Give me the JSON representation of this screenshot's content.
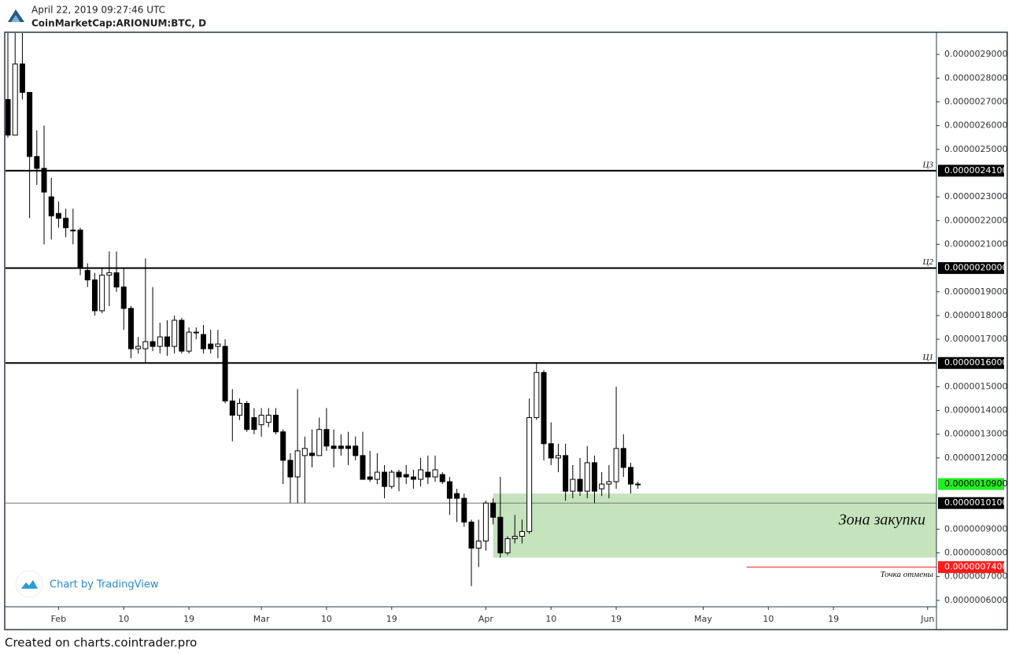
{
  "header": {
    "timestamp": "April 22, 2019 09:27:46 UTC",
    "symbol": "CoinMarketCap:ARIONUM:BTC, D"
  },
  "chart_data": {
    "type": "candlestick",
    "x": [
      "2019-01-25",
      "2019-01-26",
      "2019-01-27",
      "2019-01-28",
      "2019-01-29",
      "2019-01-30",
      "2019-01-31",
      "2019-02-01",
      "2019-02-02",
      "2019-02-03",
      "2019-02-04",
      "2019-02-05",
      "2019-02-06",
      "2019-02-07",
      "2019-02-08",
      "2019-02-09",
      "2019-02-10",
      "2019-02-11",
      "2019-02-12",
      "2019-02-13",
      "2019-02-14",
      "2019-02-15",
      "2019-02-16",
      "2019-02-17",
      "2019-02-18",
      "2019-02-19",
      "2019-02-20",
      "2019-02-21",
      "2019-02-22",
      "2019-02-23",
      "2019-02-24",
      "2019-02-25",
      "2019-02-26",
      "2019-02-27",
      "2019-02-28",
      "2019-03-01",
      "2019-03-02",
      "2019-03-03",
      "2019-03-04",
      "2019-03-05",
      "2019-03-06",
      "2019-03-07",
      "2019-03-08",
      "2019-03-09",
      "2019-03-10",
      "2019-03-11",
      "2019-03-12",
      "2019-03-13",
      "2019-03-14",
      "2019-03-15",
      "2019-03-16",
      "2019-03-17",
      "2019-03-18",
      "2019-03-19",
      "2019-03-20",
      "2019-03-21",
      "2019-03-22",
      "2019-03-23",
      "2019-03-24",
      "2019-03-25",
      "2019-03-26",
      "2019-03-27",
      "2019-03-28",
      "2019-03-29",
      "2019-03-30",
      "2019-03-31",
      "2019-04-01",
      "2019-04-02",
      "2019-04-03",
      "2019-04-04",
      "2019-04-05",
      "2019-04-06",
      "2019-04-07",
      "2019-04-08",
      "2019-04-09",
      "2019-04-10",
      "2019-04-11",
      "2019-04-12",
      "2019-04-13",
      "2019-04-14",
      "2019-04-15",
      "2019-04-16",
      "2019-04-17",
      "2019-04-18",
      "2019-04-19",
      "2019-04-20",
      "2019-04-21",
      "2019-04-22"
    ],
    "open": [
      2.71e-06,
      2.56e-06,
      2.86e-06,
      2.74e-06,
      2.47e-06,
      2.42e-06,
      2.3e-06,
      2.23e-06,
      2.21e-06,
      2.16e-06,
      2.16e-06,
      1.99e-06,
      1.95e-06,
      1.82e-06,
      1.97e-06,
      1.98e-06,
      1.92e-06,
      1.83e-06,
      1.66e-06,
      1.66e-06,
      1.69e-06,
      1.67e-06,
      1.71e-06,
      1.67e-06,
      1.78e-06,
      1.65e-06,
      1.73e-06,
      1.72e-06,
      1.68e-06,
      1.67e-06,
      1.67e-06,
      1.44e-06,
      1.38e-06,
      1.43e-06,
      1.37e-06,
      1.34e-06,
      1.35e-06,
      1.38e-06,
      1.31e-06,
      1.19e-06,
      1.12e-06,
      1.21e-06,
      1.22e-06,
      1.21e-06,
      1.32e-06,
      1.25e-06,
      1.25e-06,
      1.25e-06,
      1.25e-06,
      1.21e-06,
      1.12e-06,
      1.11e-06,
      1.14e-06,
      1.08e-06,
      1.14e-06,
      1.13e-06,
      1.12e-06,
      1.11e-06,
      1.14e-06,
      1.12e-06,
      1.13e-06,
      1.1e-06,
      1.05e-06,
      1.03e-06,
      9.3e-07,
      8.2e-07,
      8.5e-07,
      1.01e-06,
      9.5e-07,
      8e-07,
      8.6e-07,
      8.7e-07,
      8.9e-07,
      1.37e-06,
      1.56e-06,
      1.26e-06,
      1.2e-06,
      1.21e-06,
      1.06e-06,
      1.11e-06,
      1.06e-06,
      1.18e-06,
      1.07e-06,
      1.09e-06,
      1.1e-06,
      1.24e-06,
      1.16e-06,
      1.09e-06
    ],
    "high": [
      2.99e-06,
      2.99e-06,
      2.99e-06,
      2.74e-06,
      2.58e-06,
      2.6e-06,
      2.38e-06,
      2.28e-06,
      2.25e-06,
      2.25e-06,
      2.17e-06,
      2.02e-06,
      1.98e-06,
      2e-06,
      2.07e-06,
      2.07e-06,
      2e-06,
      1.84e-06,
      1.71e-06,
      2.04e-06,
      1.92e-06,
      1.77e-06,
      1.78e-06,
      1.8e-06,
      1.79e-06,
      1.75e-06,
      1.75e-06,
      1.76e-06,
      1.74e-06,
      1.74e-06,
      1.7e-06,
      1.49e-06,
      1.45e-06,
      1.44e-06,
      1.41e-06,
      1.41e-06,
      1.41e-06,
      1.41e-06,
      1.32e-06,
      1.22e-06,
      1.49e-06,
      1.29e-06,
      1.32e-06,
      1.37e-06,
      1.41e-06,
      1.32e-06,
      1.3e-06,
      1.31e-06,
      1.29e-06,
      1.31e-06,
      1.23e-06,
      1.22e-06,
      1.17e-06,
      1.15e-06,
      1.15e-06,
      1.17e-06,
      1.15e-06,
      1.2e-06,
      1.21e-06,
      1.21e-06,
      1.14e-06,
      1.12e-06,
      1.07e-06,
      1.05e-06,
      9.4e-07,
      9.4e-07,
      1.02e-06,
      1.03e-06,
      1.12e-06,
      8.7e-07,
      9.6e-07,
      9.4e-07,
      1.45e-06,
      1.6e-06,
      1.57e-06,
      1.35e-06,
      1.26e-06,
      1.26e-06,
      1.17e-06,
      1.2e-06,
      1.25e-06,
      1.21e-06,
      1.14e-06,
      1.17e-06,
      1.5e-06,
      1.3e-06,
      1.18e-06,
      1.1e-06
    ],
    "low": [
      2.55e-06,
      2.56e-06,
      2.71e-06,
      2.21e-06,
      2.35e-06,
      2.1e-06,
      2.12e-06,
      2.17e-06,
      2.13e-06,
      2.1e-06,
      1.97e-06,
      1.92e-06,
      1.8e-06,
      1.81e-06,
      1.84e-06,
      1.9e-06,
      1.74e-06,
      1.62e-06,
      1.64e-06,
      1.6e-06,
      1.65e-06,
      1.64e-06,
      1.63e-06,
      1.64e-06,
      1.64e-06,
      1.64e-06,
      1.7e-06,
      1.64e-06,
      1.64e-06,
      1.62e-06,
      1.43e-06,
      1.27e-06,
      1.36e-06,
      1.31e-06,
      1.3e-06,
      1.29e-06,
      1.33e-06,
      1.3e-06,
      1.09e-06,
      1.01e-06,
      1.01e-06,
      1.01e-06,
      1.16e-06,
      1.21e-06,
      1.23e-06,
      1.16e-06,
      1.21e-06,
      1.17e-06,
      1.19e-06,
      1.11e-06,
      1.1e-06,
      1.09e-06,
      1.03e-06,
      1.07e-06,
      1.06e-06,
      1.09e-06,
      1.07e-06,
      1.08e-06,
      1.09e-06,
      1.1e-06,
      1.09e-06,
      9.6e-07,
      9.3e-07,
      9.1e-07,
      6.6e-07,
      7.4e-07,
      8.1e-07,
      9.2e-07,
      7.8e-07,
      7.9e-07,
      8.4e-07,
      8.4e-07,
      8.8e-07,
      1.36e-06,
      1.19e-06,
      1.17e-06,
      1.14e-06,
      1.02e-06,
      1.03e-06,
      1.04e-06,
      1.03e-06,
      1.01e-06,
      1.04e-06,
      1.03e-06,
      1.07e-06,
      1.12e-06,
      1.05e-06,
      1.07e-06
    ],
    "close": [
      2.56e-06,
      2.86e-06,
      2.74e-06,
      2.47e-06,
      2.42e-06,
      2.32e-06,
      2.22e-06,
      2.21e-06,
      2.17e-06,
      2.16e-06,
      2e-06,
      1.95e-06,
      1.82e-06,
      1.97e-06,
      1.98e-06,
      1.92e-06,
      1.83e-06,
      1.66e-06,
      1.67e-06,
      1.69e-06,
      1.67e-06,
      1.71e-06,
      1.67e-06,
      1.78e-06,
      1.65e-06,
      1.73e-06,
      1.73e-06,
      1.66e-06,
      1.66e-06,
      1.68e-06,
      1.44e-06,
      1.38e-06,
      1.43e-06,
      1.32e-06,
      1.32e-06,
      1.38e-06,
      1.38e-06,
      1.31e-06,
      1.19e-06,
      1.12e-06,
      1.23e-06,
      1.24e-06,
      1.21e-06,
      1.32e-06,
      1.25e-06,
      1.24e-06,
      1.24e-06,
      1.24e-06,
      1.21e-06,
      1.11e-06,
      1.11e-06,
      1.14e-06,
      1.08e-06,
      1.14e-06,
      1.12e-06,
      1.12e-06,
      1.11e-06,
      1.15e-06,
      1.12e-06,
      1.15e-06,
      1.1e-06,
      1.03e-06,
      1.03e-06,
      9.3e-07,
      8.2e-07,
      8.5e-07,
      1.01e-06,
      9.5e-07,
      8e-07,
      8.6e-07,
      8.7e-07,
      8.9e-07,
      1.37e-06,
      1.56e-06,
      1.26e-06,
      1.2e-06,
      1.21e-06,
      1.06e-06,
      1.11e-06,
      1.06e-06,
      1.18e-06,
      1.06e-06,
      1.09e-06,
      1.1e-06,
      1.24e-06,
      1.16e-06,
      1.09e-06,
      1.09e-06
    ],
    "up_color": "#ffffff",
    "down_color": "#000000",
    "xlim": [
      "2019-01-25",
      "2019-06-02"
    ],
    "ylim": [
      5.73e-07,
      2.99e-06
    ],
    "xticks": [
      {
        "value": "2019-02-01",
        "label": "Feb"
      },
      {
        "value": "2019-02-10",
        "label": "10"
      },
      {
        "value": "2019-02-19",
        "label": "19"
      },
      {
        "value": "2019-03-01",
        "label": "Mar"
      },
      {
        "value": "2019-03-10",
        "label": "10"
      },
      {
        "value": "2019-03-19",
        "label": "19"
      },
      {
        "value": "2019-04-01",
        "label": "Apr"
      },
      {
        "value": "2019-04-10",
        "label": "10"
      },
      {
        "value": "2019-04-19",
        "label": "19"
      },
      {
        "value": "2019-05-01",
        "label": "May"
      },
      {
        "value": "2019-05-10",
        "label": "10"
      },
      {
        "value": "2019-05-19",
        "label": "19"
      },
      {
        "value": "2019-06-01",
        "label": "Jun"
      }
    ],
    "yticks": [
      {
        "value": 2.9e-06,
        "label": "0.0000029000"
      },
      {
        "value": 2.8e-06,
        "label": "0.0000028000"
      },
      {
        "value": 2.7e-06,
        "label": "0.0000027000"
      },
      {
        "value": 2.6e-06,
        "label": "0.0000026000"
      },
      {
        "value": 2.5e-06,
        "label": "0.0000025000"
      },
      {
        "value": 2.3e-06,
        "label": "0.0000023000"
      },
      {
        "value": 2.2e-06,
        "label": "0.0000022000"
      },
      {
        "value": 2.1e-06,
        "label": "0.0000021000"
      },
      {
        "value": 1.9e-06,
        "label": "0.0000019000"
      },
      {
        "value": 1.8e-06,
        "label": "0.0000018000"
      },
      {
        "value": 1.7e-06,
        "label": "0.0000017000"
      },
      {
        "value": 1.5e-06,
        "label": "0.0000015000"
      },
      {
        "value": 1.4e-06,
        "label": "0.0000014000"
      },
      {
        "value": 1.3e-06,
        "label": "0.0000013000"
      },
      {
        "value": 1.2e-06,
        "label": "0.0000012000"
      },
      {
        "value": 9e-07,
        "label": "0.0000009000"
      },
      {
        "value": 8e-07,
        "label": "0.0000008000"
      },
      {
        "value": 7e-07,
        "label": "0.0000007000"
      },
      {
        "value": 6e-07,
        "label": "0.0000006000"
      }
    ],
    "levels": [
      {
        "name": "Ц3",
        "value": 2.41e-06,
        "label": "0.0000024100"
      },
      {
        "name": "Ц2",
        "value": 2e-06,
        "label": "0.0000020000"
      },
      {
        "name": "Ц1",
        "value": 1.6e-06,
        "label": "0.0000016000"
      }
    ],
    "zone": {
      "label": "Зона закупки",
      "from": 7.8e-07,
      "to": 1.05e-06,
      "x_start": "2019-04-02",
      "color": "#c5e3bd"
    },
    "marker_price": {
      "value": 1.01e-06,
      "label": "0.0000010100"
    },
    "last_price": {
      "value": 1.09e-06,
      "label": "0.0000010900",
      "color": "#22ee22"
    },
    "stop": {
      "value": 7.4e-07,
      "label": "0.0000007400",
      "text": "Точка отмены",
      "color": "#ff1a1a",
      "x_start": "2019-05-07"
    }
  },
  "watermark": "Chart by TradingView",
  "footer": "Created on charts.cointrader.pro"
}
